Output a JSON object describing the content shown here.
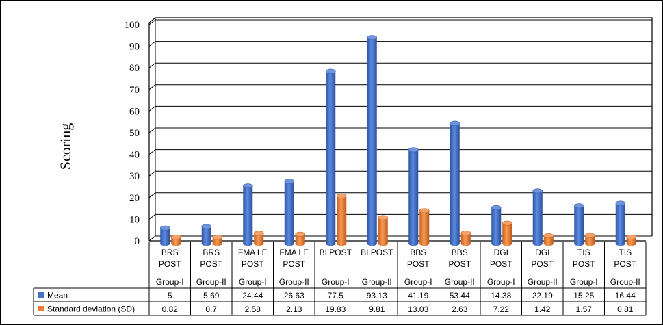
{
  "chart_data": {
    "type": "bar",
    "subtype": "3d-clustered-column-with-data-table",
    "title": "",
    "ylabel": "Scoring",
    "xlabel": "",
    "ylim": [
      0,
      100
    ],
    "yticks": [
      0,
      10,
      20,
      30,
      40,
      50,
      60,
      70,
      80,
      90,
      100
    ],
    "grid": true,
    "legend_placement": "data-table-left",
    "categories": [
      {
        "label": "BRS POST",
        "group": "Group-I"
      },
      {
        "label": "BRS POST",
        "group": "Group-II"
      },
      {
        "label": "FMA LE POST",
        "group": "Group-I"
      },
      {
        "label": "FMA LE POST",
        "group": "Group-II"
      },
      {
        "label": "BI POST",
        "group": "Group-I"
      },
      {
        "label": "BI POST",
        "group": "Group-II"
      },
      {
        "label": "BBS POST",
        "group": "Group-I"
      },
      {
        "label": "BBS POST",
        "group": "Group-II"
      },
      {
        "label": "DGI POST",
        "group": "Group-I"
      },
      {
        "label": "DGI POST",
        "group": "Group-II"
      },
      {
        "label": "TIS POST",
        "group": "Group-I"
      },
      {
        "label": "TIS POST",
        "group": "Group-II"
      }
    ],
    "series": [
      {
        "name": "Mean",
        "color": "#4472C4",
        "values": [
          5,
          5.69,
          24.44,
          26.63,
          77.5,
          93.13,
          41.19,
          53.44,
          14.38,
          22.19,
          15.25,
          16.44
        ],
        "labels": [
          "5",
          "5.69",
          "24.44",
          "26.63",
          "77.5",
          "93.13",
          "41.19",
          "53.44",
          "14.38",
          "22.19",
          "15.25",
          "16.44"
        ]
      },
      {
        "name": "Standard deviation (SD)",
        "color": "#ED7D31",
        "values": [
          0.82,
          0.7,
          2.58,
          2.13,
          19.83,
          9.81,
          13.03,
          2.63,
          7.22,
          1.42,
          1.57,
          0.81
        ],
        "labels": [
          "0.82",
          "0.7",
          "2.58",
          "2.13",
          "19.83",
          "9.81",
          "13.03",
          "2.63",
          "7.22",
          "1.42",
          "1.57",
          "0.81"
        ]
      }
    ]
  }
}
